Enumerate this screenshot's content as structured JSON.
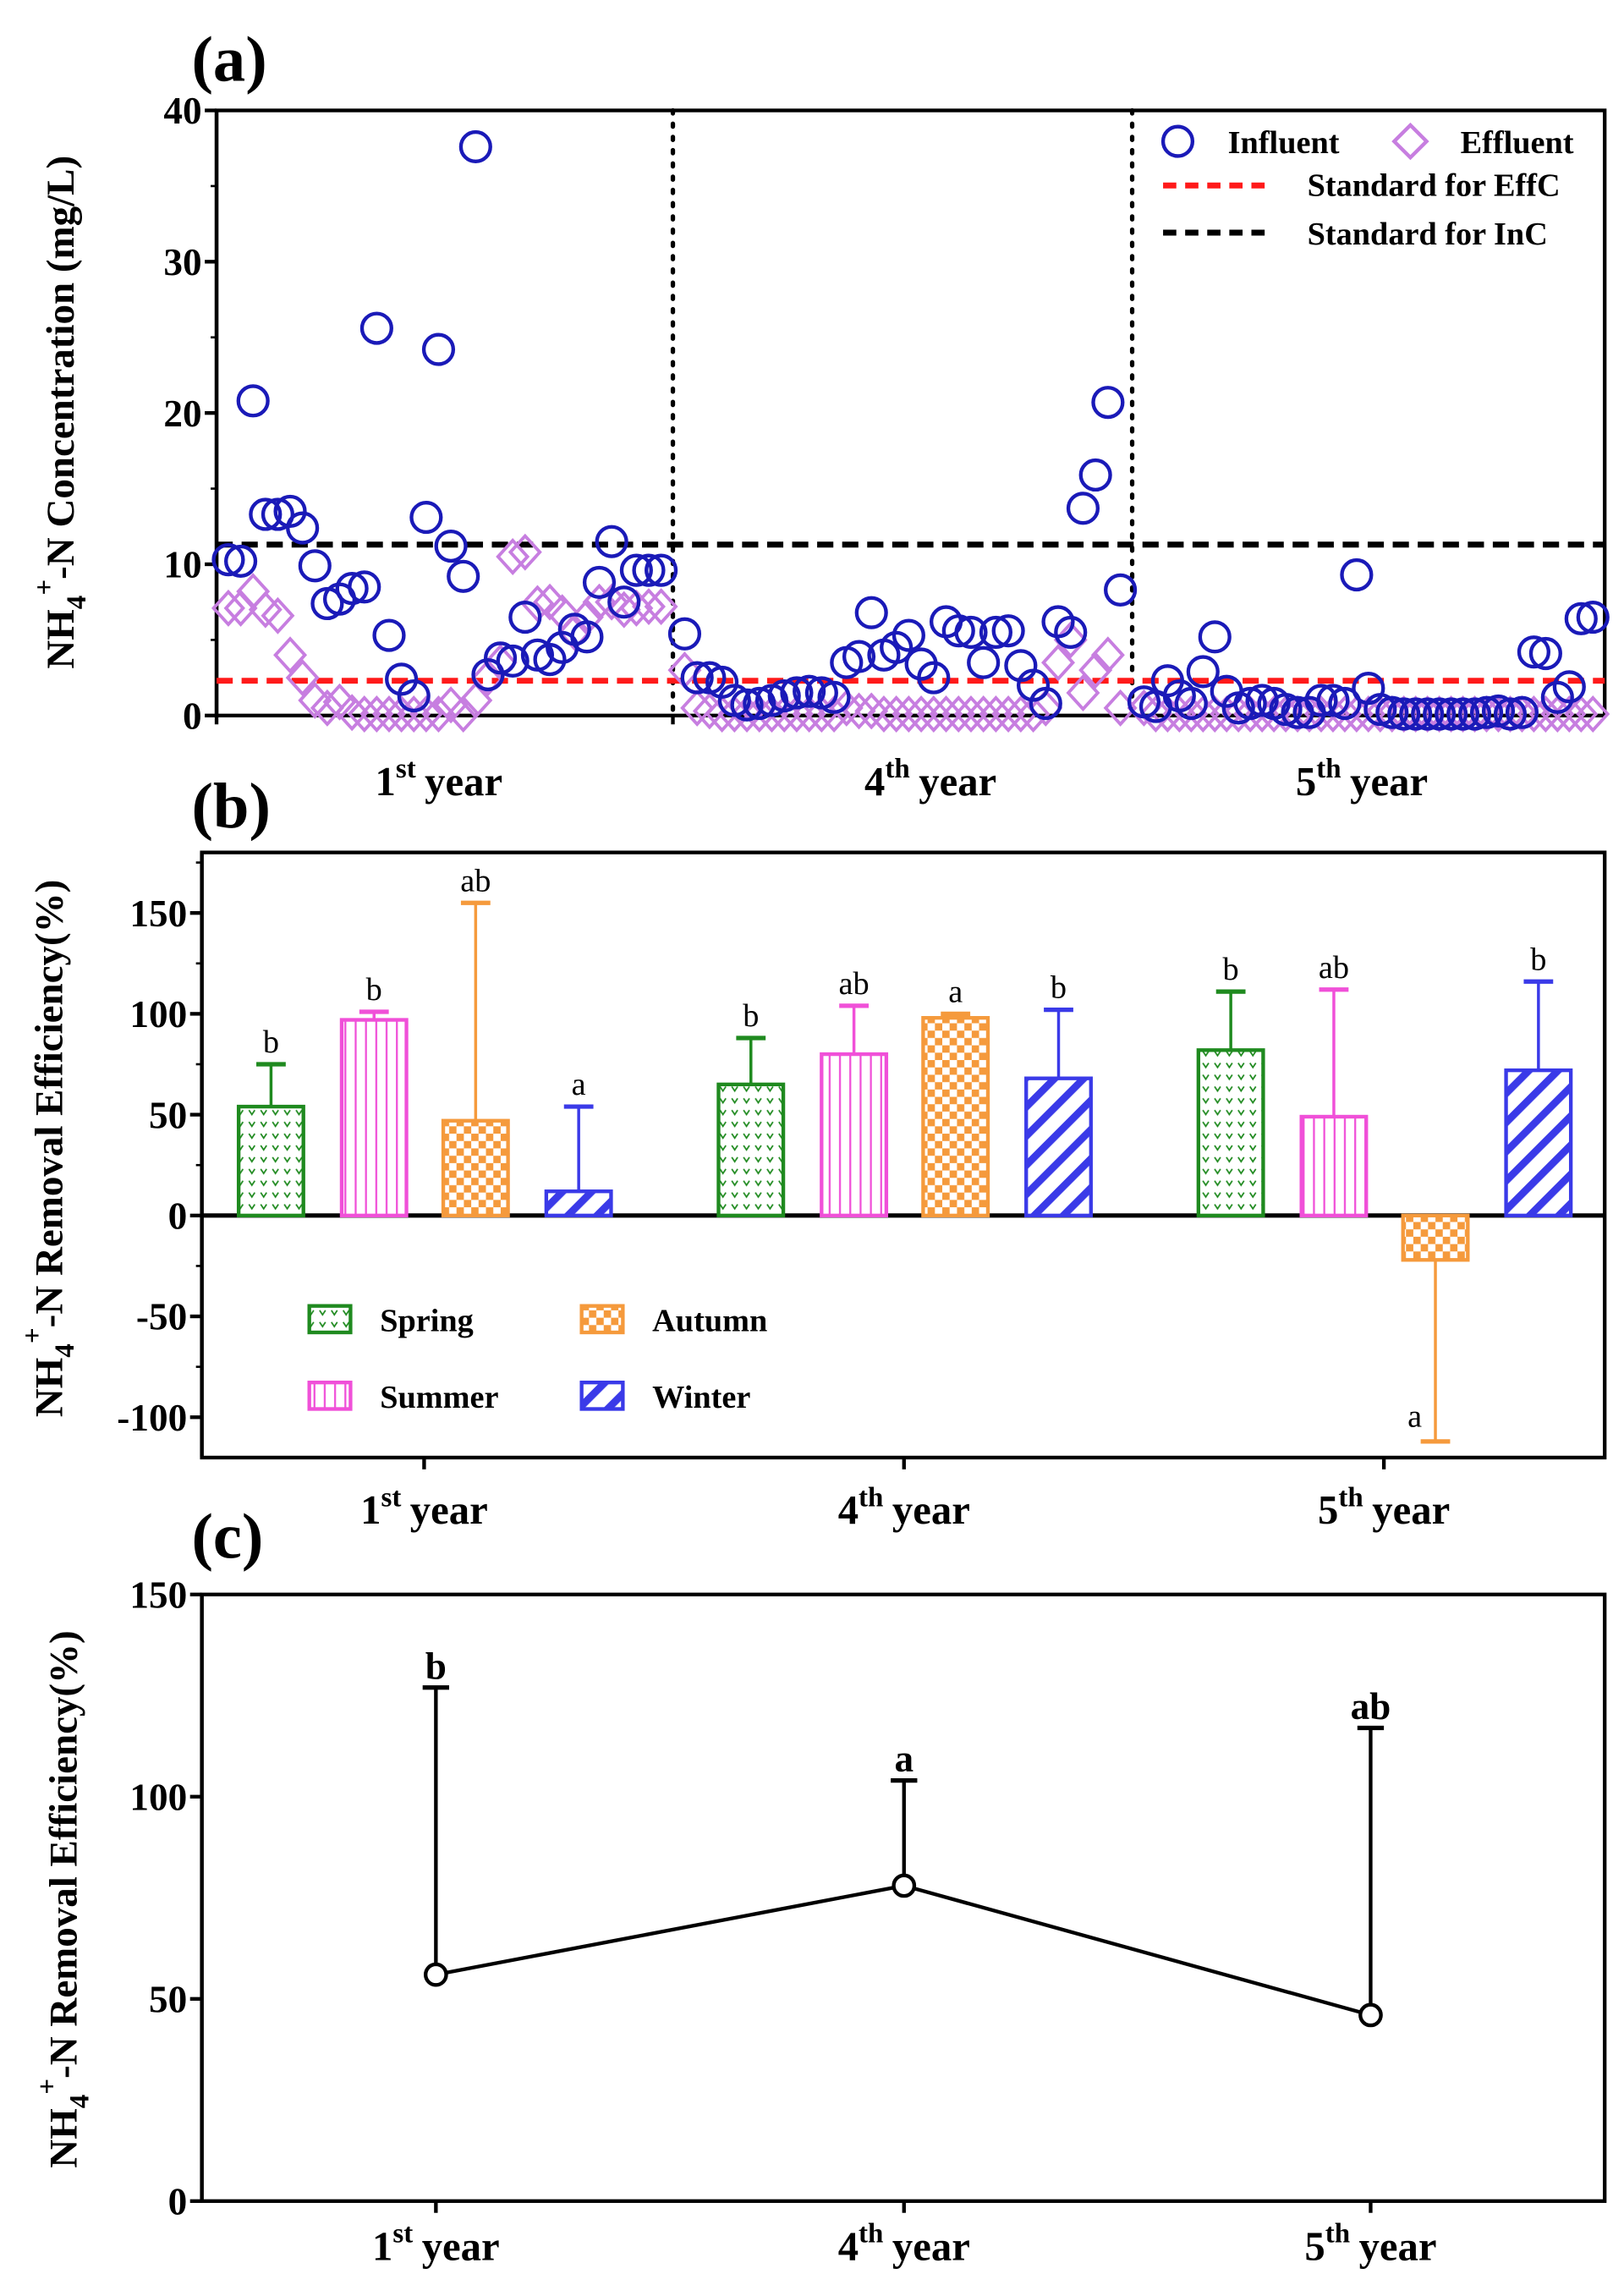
{
  "chart_data": [
    {
      "panel": "(a)",
      "type": "scatter",
      "ylabel": {
        "base": "NH",
        "sub": "4",
        "sup": "+",
        "rest": "-N Concentration (mg/L)"
      },
      "ylim": [
        0,
        40
      ],
      "yticks": [
        "0",
        "10",
        "20",
        "30",
        "40"
      ],
      "groups": [
        {
          "num": "1",
          "sup": "st",
          "word": "year"
        },
        {
          "num": "4",
          "sup": "th",
          "word": "year"
        },
        {
          "num": "5",
          "sup": "th",
          "word": "year"
        }
      ],
      "legend": {
        "influent": "Influent",
        "effluent": "Effluent",
        "std_eff": "Standard for EffC",
        "std_in": "Standard for InC",
        "placement": "top-right"
      },
      "standards": {
        "effluent": 2.3,
        "influent": 11.3
      },
      "colors": {
        "influent": "#1a1ab8",
        "effluent": "#c77ee0",
        "std_eff": "#ff1a1a",
        "std_in": "#000000"
      },
      "series": [
        {
          "name": "Influent",
          "values": [
            [
              10.3,
              10.2,
              20.8,
              13.3,
              13.3,
              13.5,
              12.4,
              9.9,
              7.4,
              7.7,
              8.4,
              8.5,
              25.6,
              5.3,
              2.4,
              1.3,
              13.1,
              24.2,
              11.2,
              9.2,
              37.6,
              2.7,
              3.8,
              3.6,
              6.5,
              4.0,
              3.7,
              4.5,
              5.7,
              5.2,
              8.8,
              11.5,
              7.5,
              9.6,
              9.6,
              9.6
            ],
            [
              5.4,
              2.5,
              2.5,
              2.2,
              1.0,
              0.7,
              0.8,
              1.0,
              1.3,
              1.5,
              1.6,
              1.5,
              1.2,
              3.5,
              3.9,
              6.8,
              4.0,
              4.5,
              5.3,
              3.4,
              2.5,
              6.2,
              5.6,
              5.5,
              3.5,
              5.5,
              5.6,
              3.3,
              2.0,
              0.8,
              6.2,
              5.5,
              13.7,
              15.9,
              20.7,
              8.3
            ],
            [
              0.9,
              0.6,
              2.3,
              1.3,
              0.8,
              2.9,
              5.2,
              1.6,
              0.5,
              0.8,
              1.0,
              0.8,
              0.4,
              0.2,
              0.2,
              1.0,
              1.0,
              0.8,
              9.3,
              1.8,
              0.4,
              0.2,
              0.1,
              0.1,
              0.1,
              0.1,
              0.1,
              0.1,
              0.1,
              0.2,
              0.3,
              0.1,
              0.2,
              4.2,
              4.1,
              1.2,
              1.9,
              6.4,
              6.5
            ]
          ]
        },
        {
          "name": "Effluent",
          "values": [
            [
              7.1,
              7.1,
              8.2,
              7.0,
              6.6,
              4.0,
              2.5,
              1.0,
              0.5,
              0.9,
              0.2,
              0.1,
              0.1,
              0.1,
              0.1,
              0.1,
              0.1,
              0.1,
              0.7,
              0.1,
              1.0,
              2.5,
              3.5,
              10.5,
              10.8,
              7.4,
              7.5,
              6.8,
              5.5,
              6.5,
              7.5,
              7.5,
              7.0,
              7.1,
              7.2,
              7.2
            ],
            [
              3.0,
              0.5,
              0.3,
              0.1,
              0.1,
              0.1,
              0.1,
              0.1,
              0.1,
              0.1,
              0.1,
              0.1,
              0.1,
              0.5,
              0.3,
              0.3,
              0.1,
              0.1,
              0.1,
              0.1,
              0.1,
              0.1,
              0.1,
              0.1,
              0.1,
              0.1,
              0.1,
              0.1,
              0.1,
              0.5,
              3.5,
              5.0,
              1.5,
              3.0,
              4.0,
              0.5
            ],
            [
              0.5,
              0.1,
              0.1,
              0.1,
              0.1,
              0.1,
              0.1,
              0.1,
              0.1,
              0.1,
              0.1,
              0.1,
              0.1,
              0.1,
              0.1,
              0.1,
              0.1,
              0.1,
              0.1,
              0.1,
              0.1,
              0.1,
              0.1,
              0.1,
              0.1,
              0.1,
              0.1,
              0.1,
              0.1,
              0.1,
              0.1,
              0.1,
              0.1,
              0.1,
              0.1,
              0.1,
              0.1,
              0.1,
              0.1
            ]
          ]
        }
      ]
    },
    {
      "panel": "(b)",
      "type": "bar",
      "ylabel": {
        "base": "NH",
        "sub": "4",
        "sup": "+",
        "rest": "-N Removal Efficiency(%)"
      },
      "ylim": [
        -120,
        180
      ],
      "yticks": [
        "-100",
        "-50",
        "0",
        "50",
        "100",
        "150"
      ],
      "categories": [
        {
          "num": "1",
          "sup": "st",
          "word": "year"
        },
        {
          "num": "4",
          "sup": "th",
          "word": "year"
        },
        {
          "num": "5",
          "sup": "th",
          "word": "year"
        }
      ],
      "legend": {
        "placement": "bottom-left"
      },
      "series": [
        {
          "name": "Spring",
          "color": "#1f8a1f",
          "values": [
            54,
            65,
            82
          ],
          "error_to": [
            75,
            88,
            111
          ],
          "letters": [
            "b",
            "b",
            "b"
          ]
        },
        {
          "name": "Summer",
          "color": "#f050d8",
          "values": [
            97,
            80,
            49
          ],
          "error_to": [
            101,
            104,
            112
          ],
          "letters": [
            "b",
            "ab",
            "ab"
          ]
        },
        {
          "name": "Autumn",
          "color": "#f59a3c",
          "values": [
            47,
            98,
            -22
          ],
          "error_to": [
            155,
            100,
            -112
          ],
          "letters": [
            "ab",
            "a",
            "a"
          ]
        },
        {
          "name": "Winter",
          "color": "#3a3ae8",
          "values": [
            12,
            68,
            72
          ],
          "error_to": [
            54,
            102,
            116
          ],
          "letters": [
            "a",
            "b",
            "b"
          ]
        }
      ]
    },
    {
      "panel": "(c)",
      "type": "line",
      "ylabel": {
        "base": "NH",
        "sub": "4",
        "sup": "+",
        "rest": "-N Removal Efficiency(%)"
      },
      "ylim": [
        0,
        150
      ],
      "yticks": [
        "0",
        "50",
        "100",
        "150"
      ],
      "categories": [
        {
          "num": "1",
          "sup": "st",
          "word": "year"
        },
        {
          "num": "4",
          "sup": "th",
          "word": "year"
        },
        {
          "num": "5",
          "sup": "th",
          "word": "year"
        }
      ],
      "values": [
        56,
        78,
        46
      ],
      "error_to": [
        127,
        104,
        117
      ],
      "letters": [
        "b",
        "a",
        "ab"
      ]
    }
  ]
}
